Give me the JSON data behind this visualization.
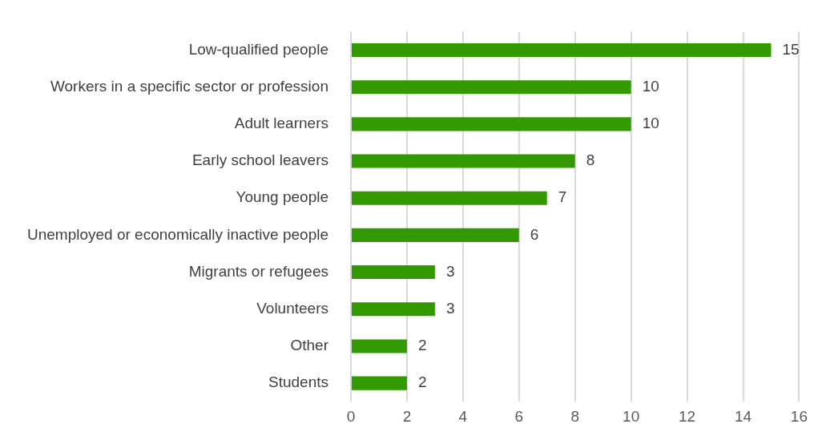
{
  "chart_data": {
    "type": "bar",
    "orientation": "horizontal",
    "categories": [
      "Low-qualified people",
      "Workers in a specific sector or profession",
      "Adult learners",
      "Early school leavers",
      "Young people",
      "Unemployed or economically inactive people",
      "Migrants or refugees",
      "Volunteers",
      "Other",
      "Students"
    ],
    "values": [
      15,
      10,
      10,
      8,
      7,
      6,
      3,
      3,
      2,
      2
    ],
    "color": "#339900",
    "xlim": [
      0,
      16
    ],
    "xticks": [
      0,
      2,
      4,
      6,
      8,
      10,
      12,
      14,
      16
    ],
    "grid": "x",
    "data_labels": true,
    "legend": false
  }
}
